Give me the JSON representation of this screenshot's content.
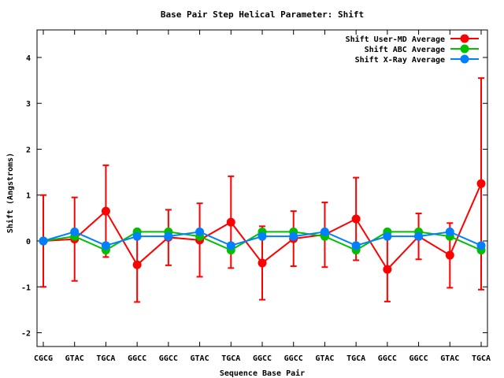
{
  "chart_data": {
    "type": "line",
    "title": "Base Pair Step Helical Parameter: Shift",
    "xlabel": "Sequence Base Pair",
    "ylabel": "Shift (Angstroms)",
    "ylim": [
      -2.3,
      4.6
    ],
    "yticks": [
      -2,
      -1,
      0,
      1,
      2,
      3,
      4
    ],
    "categories": [
      "CGCG",
      "GTAC",
      "TGCA",
      "GGCC",
      "GGCC",
      "GTAC",
      "TGCA",
      "GGCC",
      "GGCC",
      "GTAC",
      "TGCA",
      "GGCC",
      "GGCC",
      "GTAC",
      "TGCA"
    ],
    "legend_position": "top-right",
    "grid": false,
    "series": [
      {
        "name": "Shift User-MD Average",
        "color": "#ff0000",
        "values": [
          0.0,
          0.04,
          0.65,
          -0.52,
          0.08,
          0.02,
          0.41,
          -0.48,
          0.05,
          0.14,
          0.48,
          -0.62,
          0.1,
          -0.31,
          1.25
        ],
        "err_low": [
          -1.0,
          -0.87,
          -0.35,
          -1.33,
          -0.53,
          -0.78,
          -0.59,
          -1.28,
          -0.55,
          -0.57,
          -0.42,
          -1.32,
          -0.4,
          -1.02,
          -1.06
        ],
        "err_high": [
          1.0,
          0.95,
          1.65,
          0.22,
          0.68,
          0.82,
          1.41,
          0.32,
          0.65,
          0.84,
          1.38,
          0.07,
          0.6,
          0.39,
          3.55
        ]
      },
      {
        "name": "Shift ABC Average",
        "color": "#00c000",
        "values": [
          0.0,
          0.1,
          -0.2,
          0.2,
          0.2,
          0.1,
          -0.2,
          0.2,
          0.2,
          0.1,
          -0.2,
          0.2,
          0.2,
          0.1,
          -0.2
        ]
      },
      {
        "name": "Shift X-Ray Average",
        "color": "#0080ff",
        "values": [
          0.0,
          0.2,
          -0.1,
          0.1,
          0.1,
          0.2,
          -0.1,
          0.1,
          0.1,
          0.2,
          -0.1,
          0.1,
          0.1,
          0.2,
          -0.1
        ]
      }
    ]
  }
}
